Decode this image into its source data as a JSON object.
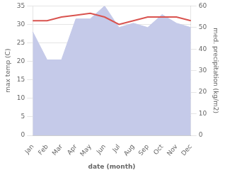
{
  "chart_data": {
    "type": "line",
    "categories": [
      "Jan",
      "Feb",
      "Mar",
      "Apr",
      "May",
      "Jun",
      "Jul",
      "Aug",
      "Sep",
      "Oct",
      "Nov",
      "Dec"
    ],
    "series": [
      {
        "type": "area",
        "color": "#c5cae9",
        "axis": "y2",
        "values": [
          48,
          35,
          35,
          54,
          54,
          60,
          50,
          52,
          50,
          56,
          52,
          50
        ]
      },
      {
        "type": "line",
        "color": "#d9534f",
        "values": [
          31.0,
          31.0,
          32.0,
          32.5,
          33.0,
          32.0,
          30.0,
          31.0,
          32.0,
          32.0,
          32.0,
          31.0
        ]
      }
    ],
    "xlabel": "date (month)",
    "ylabel": "max temp (C)",
    "y2label": "med. precipitation (kg/m2)",
    "ylim": [
      0,
      35
    ],
    "yticks": [
      0,
      5,
      10,
      15,
      20,
      25,
      30,
      35
    ],
    "y2lim": [
      0,
      60
    ],
    "y2ticks": [
      0,
      10,
      20,
      30,
      40,
      50,
      60
    ],
    "grid": true
  }
}
